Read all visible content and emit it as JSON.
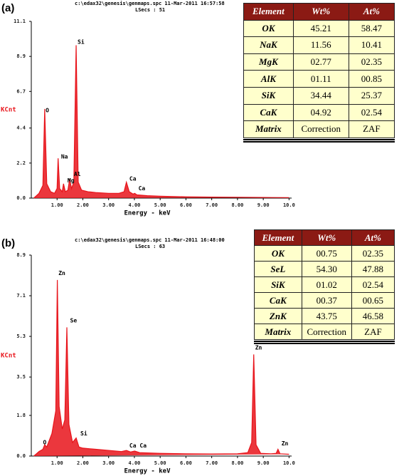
{
  "panels": [
    {
      "label": "(a)",
      "table": {
        "header": [
          "Element",
          "Wt%",
          "At%"
        ],
        "rows": [
          [
            "OK",
            "45.21",
            "58.47"
          ],
          [
            "NaK",
            "11.56",
            "10.41"
          ],
          [
            "MgK",
            "02.77",
            "02.35"
          ],
          [
            "AlK",
            "01.11",
            "00.85"
          ],
          [
            "SiK",
            "34.44",
            "25.37"
          ],
          [
            "CaK",
            "04.92",
            "02.54"
          ],
          [
            "Matrix",
            "Correction",
            "ZAF"
          ]
        ]
      }
    },
    {
      "label": "(b)",
      "table": {
        "header": [
          "Element",
          "Wt%",
          "At%"
        ],
        "rows": [
          [
            "OK",
            "00.75",
            "02.35"
          ],
          [
            "SeL",
            "54.30",
            "47.88"
          ],
          [
            "SiK",
            "01.02",
            "02.54"
          ],
          [
            "CaK",
            "00.37",
            "00.65"
          ],
          [
            "ZnK",
            "43.75",
            "46.58"
          ],
          [
            "Matrix",
            "Correction",
            "ZAF"
          ]
        ]
      }
    }
  ],
  "chart_data": [
    {
      "type": "line",
      "title": "c:\\edax32\\genesis\\genmaps.spc 11-Mar-2011 16:57:58",
      "subtitle": "LSecs : 51",
      "xlabel": "Energy - keV",
      "ylabel": "KCnt",
      "color": "#e8141b",
      "xlim": [
        0,
        10.1
      ],
      "ylim": [
        0,
        11.1
      ],
      "xticks": [
        {
          "value": 1,
          "label": "1.00"
        },
        {
          "value": 2,
          "label": "2.00"
        },
        {
          "value": 3,
          "label": "3.00"
        },
        {
          "value": 4,
          "label": "4.00"
        },
        {
          "value": 5,
          "label": "5.00"
        },
        {
          "value": 6,
          "label": "6.00"
        },
        {
          "value": 7,
          "label": "7.00"
        },
        {
          "value": 8,
          "label": "8.00"
        },
        {
          "value": 9,
          "label": "9.00"
        },
        {
          "value": 10,
          "label": "10.0"
        }
      ],
      "yticks": [
        {
          "value": 0,
          "label": "0.0"
        },
        2.2,
        4.4,
        6.7,
        8.9,
        11.1
      ],
      "x": [
        0.1,
        0.3,
        0.45,
        0.52,
        0.6,
        0.75,
        0.9,
        1.0,
        1.04,
        1.1,
        1.2,
        1.25,
        1.32,
        1.42,
        1.49,
        1.56,
        1.65,
        1.74,
        1.82,
        1.95,
        2.2,
        2.5,
        3.0,
        3.4,
        3.6,
        3.69,
        3.8,
        3.95,
        4.01,
        4.1,
        4.5,
        5.0,
        6.0,
        7.0,
        8.0,
        9.0,
        10.0
      ],
      "values": [
        0,
        0.3,
        0.8,
        5.6,
        0.9,
        0.4,
        0.3,
        0.6,
        2.5,
        0.6,
        0.4,
        0.9,
        0.4,
        0.5,
        1.2,
        0.6,
        1.0,
        9.6,
        1.0,
        0.5,
        0.4,
        0.35,
        0.3,
        0.3,
        0.4,
        1.0,
        0.4,
        0.25,
        0.3,
        0.2,
        0.15,
        0.12,
        0.08,
        0.06,
        0.05,
        0.04,
        0.03
      ],
      "annotations": [
        {
          "text": "O",
          "x": 0.5,
          "y": 5.5
        },
        {
          "text": "Na",
          "x": 1.1,
          "y": 2.6
        },
        {
          "text": "Mg",
          "x": 1.35,
          "y": 1.1
        },
        {
          "text": "Al",
          "x": 1.6,
          "y": 1.5
        },
        {
          "text": "Si",
          "x": 1.74,
          "y": 9.8
        },
        {
          "text": "Ca",
          "x": 3.75,
          "y": 1.2
        },
        {
          "text": "Ca",
          "x": 4.1,
          "y": 0.6
        }
      ]
    },
    {
      "type": "line",
      "title": "c:\\edax32\\genesis\\genmaps.spc 11-Mar-2011 16:48:00",
      "subtitle": "LSecs : 63",
      "xlabel": "Energy - keV",
      "ylabel": "KCnt",
      "color": "#e8141b",
      "xlim": [
        0,
        10.1
      ],
      "ylim": [
        0,
        8.9
      ],
      "xticks": [
        {
          "value": 1,
          "label": "1.00"
        },
        {
          "value": 2,
          "label": "2.00"
        },
        {
          "value": 3,
          "label": "3.00"
        },
        {
          "value": 4,
          "label": "4.00"
        },
        {
          "value": 5,
          "label": "5.00"
        },
        {
          "value": 6,
          "label": "6.00"
        },
        {
          "value": 7,
          "label": "7.00"
        },
        {
          "value": 8,
          "label": "8.00"
        },
        {
          "value": 9,
          "label": "9.00"
        },
        {
          "value": 10,
          "label": "10.0"
        }
      ],
      "yticks": [
        {
          "value": 0,
          "label": "0.0"
        },
        1.8,
        3.5,
        5.3,
        7.1,
        8.9
      ],
      "x": [
        0.1,
        0.3,
        0.45,
        0.52,
        0.6,
        0.8,
        0.95,
        1.01,
        1.08,
        1.2,
        1.3,
        1.38,
        1.46,
        1.6,
        1.74,
        1.85,
        2.0,
        2.5,
        3.0,
        3.5,
        3.69,
        3.85,
        4.01,
        4.2,
        5.0,
        6.0,
        7.0,
        8.0,
        8.4,
        8.55,
        8.63,
        8.72,
        8.9,
        9.3,
        9.5,
        9.57,
        9.65,
        10.0
      ],
      "values": [
        0,
        0.2,
        0.3,
        0.5,
        0.4,
        1.0,
        2.0,
        7.8,
        2.2,
        1.2,
        1.6,
        5.7,
        1.4,
        0.6,
        0.8,
        0.4,
        0.35,
        0.3,
        0.25,
        0.2,
        0.25,
        0.18,
        0.22,
        0.15,
        0.12,
        0.1,
        0.09,
        0.1,
        0.15,
        0.6,
        4.5,
        0.5,
        0.12,
        0.1,
        0.12,
        0.3,
        0.1,
        0.08
      ],
      "annotations": [
        {
          "text": "Zn",
          "x": 1.0,
          "y": 8.1
        },
        {
          "text": "Se",
          "x": 1.45,
          "y": 6.0
        },
        {
          "text": "Si",
          "x": 1.85,
          "y": 1.0
        },
        {
          "text": "O",
          "x": 0.4,
          "y": 0.6
        },
        {
          "text": "Ca",
          "x": 3.75,
          "y": 0.45
        },
        {
          "text": "Ca",
          "x": 4.15,
          "y": 0.45
        },
        {
          "text": "Zn",
          "x": 8.63,
          "y": 4.8
        },
        {
          "text": "Zn",
          "x": 9.65,
          "y": 0.55
        }
      ]
    }
  ]
}
